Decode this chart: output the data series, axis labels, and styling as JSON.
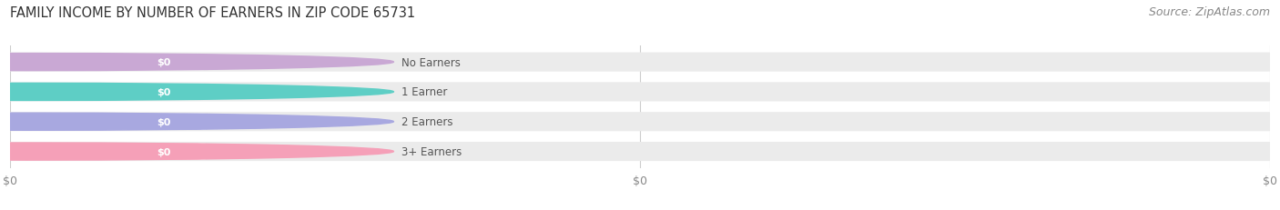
{
  "title": "FAMILY INCOME BY NUMBER OF EARNERS IN ZIP CODE 65731",
  "source": "Source: ZipAtlas.com",
  "categories": [
    "No Earners",
    "1 Earner",
    "2 Earners",
    "3+ Earners"
  ],
  "values": [
    0,
    0,
    0,
    0
  ],
  "bar_colors": [
    "#c9a8d4",
    "#5ecec5",
    "#a8a8e0",
    "#f5a0b8"
  ],
  "bar_bg_color": "#ebebeb",
  "value_labels": [
    "$0",
    "$0",
    "$0",
    "$0"
  ],
  "x_tick_labels": [
    "$0",
    "$0",
    "$0"
  ],
  "x_tick_positions": [
    0.0,
    0.5,
    1.0
  ],
  "xlim": [
    0,
    1
  ],
  "figsize": [
    14.06,
    2.32
  ],
  "dpi": 100,
  "title_fontsize": 10.5,
  "source_fontsize": 9,
  "bar_height": 0.62,
  "bg_color": "#ffffff",
  "grid_color": "#cccccc",
  "label_text_color": "#555555",
  "value_text_color": "#ffffff"
}
